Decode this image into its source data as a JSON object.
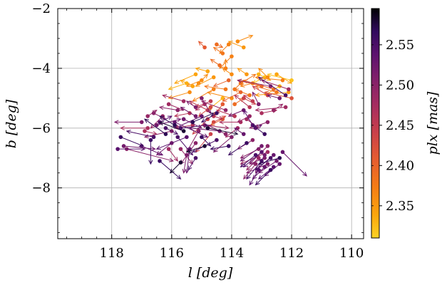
{
  "chart_data": {
    "type": "scatter",
    "title": "",
    "xlabel": "l [deg]",
    "ylabel": "b [deg]",
    "xlim": [
      119.8,
      109.6
    ],
    "ylim": [
      -9.7,
      -2.0
    ],
    "xticks": [
      118,
      116,
      114,
      112,
      110
    ],
    "yticks": [
      -2,
      -4,
      -6,
      -8
    ],
    "grid": true,
    "colorbar": {
      "label": "plx [mas]",
      "range": [
        2.31,
        2.595
      ],
      "ticks": [
        2.35,
        2.4,
        2.45,
        2.5,
        2.55
      ],
      "colormap": "inferno"
    },
    "vector_field": "proper-motion arrows drawn from each point",
    "points": [
      [
        117.7,
        -6.3,
        -0.75,
        -0.3,
        2.56
      ],
      [
        117.6,
        -6.6,
        -1.05,
        -0.1,
        2.52
      ],
      [
        117.8,
        -6.7,
        -0.9,
        0.0,
        2.54
      ],
      [
        117.5,
        -6.7,
        -1.55,
        -0.4,
        2.5
      ],
      [
        116.4,
        -7.1,
        -0.7,
        -0.6,
        2.56
      ],
      [
        115.7,
        -7.15,
        0.35,
        -0.35,
        2.58
      ],
      [
        116.2,
        -6.0,
        -0.4,
        -0.2,
        2.55
      ],
      [
        115.2,
        -7.0,
        0.25,
        -0.4,
        2.55
      ],
      [
        117.0,
        -6.6,
        -0.7,
        -0.3,
        2.53
      ],
      [
        116.0,
        -6.1,
        0.9,
        -0.2,
        2.5
      ],
      [
        116.5,
        -5.9,
        -0.8,
        0.2,
        2.52
      ],
      [
        116.7,
        -6.4,
        0.0,
        -0.8,
        2.56
      ],
      [
        116.1,
        -5.2,
        -0.5,
        -0.2,
        2.48
      ],
      [
        115.8,
        -5.4,
        0.6,
        0.1,
        2.5
      ],
      [
        115.6,
        -5.7,
        -0.6,
        -0.3,
        2.52
      ],
      [
        115.4,
        -5.5,
        0.5,
        -0.1,
        2.46
      ],
      [
        115.9,
        -5.8,
        -1.1,
        -0.5,
        2.53
      ],
      [
        116.3,
        -5.6,
        0.4,
        -0.4,
        2.49
      ],
      [
        115.7,
        -6.0,
        -0.9,
        0.1,
        2.55
      ],
      [
        115.2,
        -5.3,
        0.3,
        0.2,
        2.51
      ],
      [
        116.6,
        -5.5,
        -0.4,
        -0.2,
        2.5
      ],
      [
        115.5,
        -6.3,
        1.0,
        -0.4,
        2.54
      ],
      [
        116.8,
        -6.0,
        0.9,
        0.0,
        2.47
      ],
      [
        115.3,
        -5.8,
        -0.7,
        0.3,
        2.57
      ],
      [
        115.1,
        -6.1,
        0.4,
        -0.7,
        2.5
      ],
      [
        114.9,
        -5.9,
        -0.8,
        -0.1,
        2.48
      ],
      [
        115.0,
        -5.6,
        0.9,
        -0.4,
        2.53
      ],
      [
        114.8,
        -5.4,
        0.6,
        0.3,
        2.45
      ],
      [
        114.7,
        -6.2,
        0.5,
        -0.6,
        2.44
      ],
      [
        114.6,
        -5.8,
        -0.4,
        0.2,
        2.43
      ],
      [
        115.6,
        -5.1,
        0.7,
        0.2,
        2.48
      ],
      [
        115.0,
        -5.0,
        -0.3,
        -0.5,
        2.51
      ],
      [
        114.9,
        -5.2,
        0.3,
        -0.2,
        2.47
      ],
      [
        114.8,
        -6.0,
        -1.0,
        -0.2,
        2.58
      ],
      [
        114.5,
        -5.5,
        0.5,
        -0.3,
        2.56
      ],
      [
        114.3,
        -5.7,
        0.4,
        -0.2,
        2.4
      ],
      [
        114.4,
        -6.1,
        1.0,
        0.1,
        2.52
      ],
      [
        114.2,
        -5.4,
        0.8,
        0.3,
        2.49
      ],
      [
        114.0,
        -6.3,
        0.6,
        -0.5,
        2.51
      ],
      [
        113.9,
        -5.2,
        -0.3,
        0.2,
        2.39
      ],
      [
        113.7,
        -5.8,
        0.7,
        0.0,
        2.47
      ],
      [
        114.1,
        -6.6,
        0.6,
        -0.1,
        2.56
      ],
      [
        115.2,
        -6.5,
        0.5,
        -0.7,
        2.5
      ],
      [
        114.5,
        -6.4,
        0.8,
        -0.4,
        2.55
      ],
      [
        115.4,
        -6.7,
        0.1,
        -0.8,
        2.53
      ],
      [
        115.3,
        -5.9,
        0.6,
        -0.1,
        2.46
      ],
      [
        115.8,
        -6.3,
        -0.5,
        -0.6,
        2.55
      ],
      [
        116.0,
        -6.5,
        0.5,
        -0.4,
        2.52
      ],
      [
        115.6,
        -6.1,
        0.8,
        0.3,
        2.58
      ],
      [
        116.2,
        -6.2,
        0.7,
        0.5,
        2.57
      ],
      [
        115.0,
        -6.3,
        -0.3,
        -0.3,
        2.56
      ],
      [
        113.6,
        -5.4,
        0.5,
        -0.2,
        2.52
      ],
      [
        113.5,
        -5.7,
        -0.4,
        -0.3,
        2.48
      ],
      [
        113.3,
        -5.9,
        0.3,
        0.5,
        2.54
      ],
      [
        113.1,
        -5.2,
        0.2,
        0.4,
        2.51
      ],
      [
        113.0,
        -5.5,
        -0.5,
        0.1,
        2.47
      ],
      [
        112.8,
        -5.8,
        0.6,
        -0.2,
        2.5
      ],
      [
        112.6,
        -5.4,
        -0.3,
        0.2,
        2.49
      ],
      [
        112.4,
        -5.0,
        0.4,
        0.1,
        2.52
      ],
      [
        112.2,
        -5.3,
        1.0,
        -0.1,
        2.48
      ],
      [
        112.9,
        -6.2,
        0.4,
        0.3,
        2.56
      ],
      [
        113.2,
        -6.0,
        -0.2,
        0.1,
        2.53
      ],
      [
        113.4,
        -5.3,
        0.5,
        0.4,
        2.46
      ],
      [
        113.3,
        -4.5,
        0.4,
        -0.1,
        2.37
      ],
      [
        113.5,
        -4.2,
        0.3,
        0.2,
        2.35
      ],
      [
        113.7,
        -4.5,
        -0.5,
        0.3,
        2.38
      ],
      [
        114.2,
        -4.0,
        0.0,
        0.3,
        2.37
      ],
      [
        114.0,
        -4.2,
        0.3,
        0.2,
        2.36
      ],
      [
        114.4,
        -3.9,
        0.3,
        0.2,
        2.39
      ],
      [
        114.6,
        -4.3,
        0.6,
        -0.3,
        2.35
      ],
      [
        114.8,
        -4.1,
        0.4,
        0.1,
        2.34
      ],
      [
        115.0,
        -4.4,
        0.5,
        -0.2,
        2.36
      ],
      [
        115.2,
        -4.2,
        0.7,
        -0.3,
        2.34
      ],
      [
        114.3,
        -3.5,
        0.3,
        0.2,
        2.38
      ],
      [
        114.1,
        -3.2,
        0.3,
        -0.3,
        2.37
      ],
      [
        114.9,
        -3.3,
        0.2,
        0.2,
        2.41
      ],
      [
        113.8,
        -3.1,
        -0.5,
        0.2,
        2.36
      ],
      [
        114.0,
        -3.6,
        0.4,
        -0.4,
        2.37
      ],
      [
        113.6,
        -3.3,
        0.5,
        0.2,
        2.35
      ],
      [
        114.5,
        -3.2,
        -0.2,
        -0.1,
        2.39
      ],
      [
        114.6,
        -4.7,
        0.7,
        -0.4,
        2.37
      ],
      [
        114.2,
        -4.7,
        0.7,
        0.1,
        2.38
      ],
      [
        114.3,
        -5.0,
        0.5,
        -0.4,
        2.33
      ],
      [
        114.0,
        -5.0,
        0.8,
        0.2,
        2.36
      ],
      [
        113.7,
        -4.8,
        0.6,
        -0.3,
        2.4
      ],
      [
        113.4,
        -4.9,
        0.5,
        0.2,
        2.38
      ],
      [
        113.1,
        -4.2,
        -0.4,
        -0.2,
        2.33
      ],
      [
        112.8,
        -4.3,
        0.3,
        0.3,
        2.36
      ],
      [
        112.5,
        -4.2,
        -0.5,
        -0.3,
        2.34
      ],
      [
        112.3,
        -4.4,
        0.9,
        0.1,
        2.37
      ],
      [
        112.0,
        -4.4,
        0.8,
        0.2,
        2.32
      ],
      [
        112.1,
        -4.8,
        1.1,
        -0.1,
        2.35
      ],
      [
        112.5,
        -4.8,
        0.7,
        0.2,
        2.38
      ],
      [
        112.8,
        -4.9,
        0.5,
        0.3,
        2.44
      ],
      [
        112.6,
        -4.7,
        1.0,
        0.3,
        2.39
      ],
      [
        112.2,
        -4.9,
        0.9,
        0.6,
        2.55
      ],
      [
        112.1,
        -4.7,
        0.9,
        0.3,
        2.48
      ],
      [
        112.7,
        -4.6,
        1.1,
        0.2,
        2.5
      ],
      [
        112.0,
        -5.0,
        0.9,
        0.2,
        2.42
      ],
      [
        113.0,
        -4.6,
        0.8,
        0.2,
        2.4
      ],
      [
        112.4,
        -4.6,
        0.5,
        -0.3,
        2.33
      ],
      [
        112.9,
        -4.3,
        0.4,
        -0.2,
        2.32
      ],
      [
        115.4,
        -4.8,
        0.7,
        -0.2,
        2.36
      ],
      [
        115.5,
        -4.5,
        0.6,
        -0.2,
        2.33
      ],
      [
        115.3,
        -4.6,
        0.4,
        0.2,
        2.34
      ],
      [
        114.1,
        -4.4,
        0.5,
        -0.2,
        2.4
      ],
      [
        113.9,
        -4.7,
        -0.3,
        0.3,
        2.38
      ],
      [
        115.1,
        -4.5,
        -0.3,
        0.3,
        2.36
      ],
      [
        113.1,
        -7.0,
        0.4,
        -0.4,
        2.49
      ],
      [
        113.0,
        -6.8,
        0.6,
        -0.5,
        2.54
      ],
      [
        112.9,
        -6.9,
        0.3,
        -0.6,
        2.52
      ],
      [
        113.0,
        -7.1,
        0.5,
        -0.6,
        2.55
      ],
      [
        112.8,
        -7.2,
        0.7,
        -0.3,
        2.51
      ],
      [
        112.9,
        -7.3,
        0.4,
        -0.4,
        2.53
      ],
      [
        113.1,
        -6.7,
        0.6,
        -0.3,
        2.5
      ],
      [
        112.7,
        -7.0,
        0.5,
        -0.4,
        2.55
      ],
      [
        112.8,
        -6.8,
        0.9,
        -0.4,
        2.48
      ],
      [
        112.6,
        -7.3,
        0.5,
        -0.4,
        2.54
      ],
      [
        112.5,
        -7.1,
        0.6,
        -0.4,
        2.52
      ],
      [
        112.4,
        -7.2,
        0.5,
        -0.4,
        2.53
      ],
      [
        113.2,
        -7.2,
        0.4,
        -0.5,
        2.5
      ],
      [
        112.7,
        -7.4,
        0.5,
        -0.5,
        2.56
      ],
      [
        112.9,
        -7.0,
        0.5,
        -0.2,
        2.51
      ],
      [
        113.0,
        -6.6,
        0.7,
        -0.5,
        2.52
      ],
      [
        112.8,
        -6.6,
        0.6,
        -0.6,
        2.5
      ],
      [
        113.2,
        -6.9,
        0.5,
        -0.4,
        2.55
      ],
      [
        112.6,
        -6.9,
        0.6,
        -0.5,
        2.53
      ],
      [
        113.1,
        -7.4,
        0.3,
        -0.5,
        2.54
      ],
      [
        112.4,
        -7.0,
        0.7,
        -0.2,
        2.57
      ],
      [
        112.3,
        -6.8,
        -0.8,
        -0.8,
        2.53
      ],
      [
        113.5,
        -6.5,
        0.6,
        -0.4,
        2.56
      ],
      [
        113.3,
        -6.4,
        0.5,
        -0.3,
        2.5
      ],
      [
        116.8,
        -5.6,
        -0.3,
        0.2,
        2.49
      ],
      [
        117.0,
        -5.8,
        0.9,
        0.0,
        2.51
      ],
      [
        116.4,
        -5.8,
        -0.4,
        0.2,
        2.54
      ],
      [
        116.9,
        -6.1,
        -0.4,
        -0.1,
        2.47
      ],
      [
        114.7,
        -5.1,
        0.5,
        -0.2,
        2.45
      ],
      [
        114.6,
        -5.6,
        -0.3,
        -0.1,
        2.46
      ],
      [
        115.9,
        -5.9,
        0.5,
        0.3,
        2.57
      ],
      [
        114.9,
        -6.6,
        0.6,
        -0.2,
        2.58
      ],
      [
        115.7,
        -6.7,
        -0.4,
        -0.5,
        2.49
      ],
      [
        114.2,
        -6.2,
        0.6,
        0.3,
        2.5
      ],
      [
        113.8,
        -6.0,
        0.4,
        -0.3,
        2.48
      ],
      [
        113.6,
        -6.2,
        0.3,
        0.2,
        2.53
      ],
      [
        114.8,
        -5.7,
        0.5,
        -0.5,
        2.44
      ],
      [
        113.9,
        -5.6,
        0.6,
        0.2,
        2.46
      ],
      [
        116.1,
        -6.7,
        -0.3,
        -0.4,
        2.48
      ],
      [
        115.5,
        -6.9,
        0.1,
        -0.6,
        2.51
      ],
      [
        116.6,
        -6.3,
        0.9,
        0.2,
        2.55
      ],
      [
        115.2,
        -5.6,
        0.5,
        0.3,
        2.52
      ],
      [
        114.3,
        -5.2,
        0.3,
        -0.4,
        2.41
      ],
      [
        114.7,
        -5.3,
        0.4,
        -0.3,
        2.43
      ],
      [
        113.3,
        -5.1,
        0.3,
        0.2,
        2.45
      ],
      [
        113.6,
        -5.0,
        -0.4,
        -0.2,
        2.44
      ],
      [
        113.4,
        -5.6,
        0.4,
        -0.2,
        2.49
      ]
    ]
  }
}
